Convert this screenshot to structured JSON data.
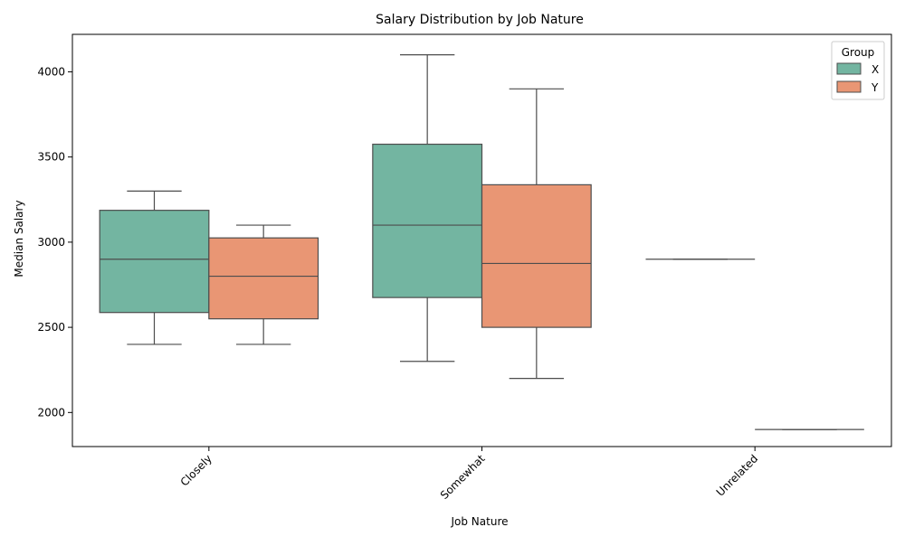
{
  "chart_data": {
    "type": "box",
    "title": "Salary Distribution by Job Nature",
    "xlabel": "Job Nature",
    "ylabel": "Median Salary",
    "categories": [
      "Closely",
      "Somewhat",
      "Unrelated"
    ],
    "ylim": [
      1800,
      4220
    ],
    "yticks": [
      2000,
      2500,
      3000,
      3500,
      4000
    ],
    "grid": false,
    "legend": {
      "title": "Group",
      "position": "top-right"
    },
    "series": [
      {
        "name": "X",
        "color": "#73b5a1",
        "boxes": [
          {
            "category": "Closely",
            "min": 2400,
            "q1": 2587,
            "median": 2900,
            "q3": 3187,
            "max": 3300
          },
          {
            "category": "Somewhat",
            "min": 2300,
            "q1": 2675,
            "median": 3100,
            "q3": 3575,
            "max": 4100
          },
          {
            "category": "Unrelated",
            "min": 2900,
            "q1": 2900,
            "median": 2900,
            "q3": 2900,
            "max": 2900
          }
        ]
      },
      {
        "name": "Y",
        "color": "#e99674",
        "boxes": [
          {
            "category": "Closely",
            "min": 2400,
            "q1": 2550,
            "median": 2800,
            "q3": 3025,
            "max": 3100
          },
          {
            "category": "Somewhat",
            "min": 2200,
            "q1": 2500,
            "median": 2875,
            "q3": 3337,
            "max": 3900
          },
          {
            "category": "Unrelated",
            "min": 1900,
            "q1": 1900,
            "median": 1900,
            "q3": 1900,
            "max": 1900
          }
        ]
      }
    ]
  }
}
